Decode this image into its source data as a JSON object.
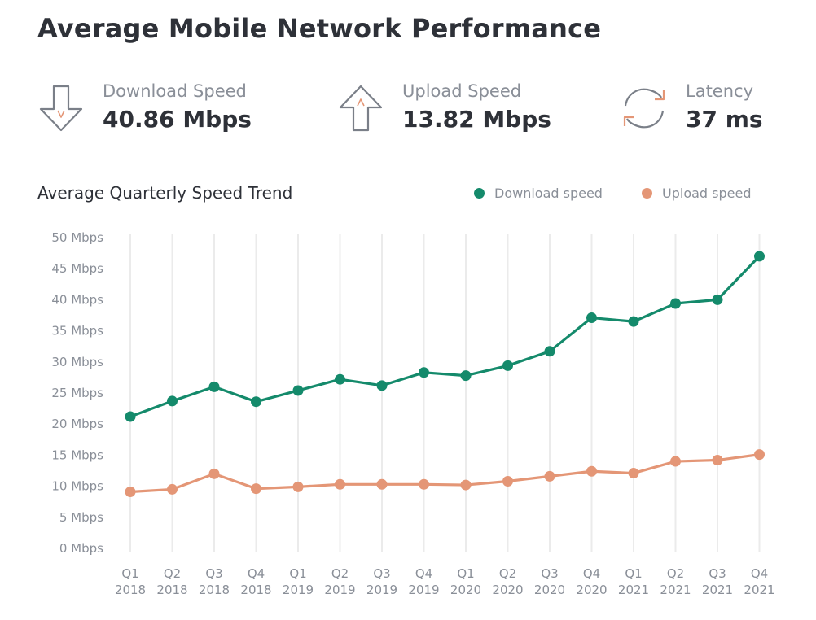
{
  "title": "Average Mobile Network Performance",
  "stats": {
    "download": {
      "label": "Download Speed",
      "value": "40.86 Mbps",
      "icon": "arrow-down-icon"
    },
    "upload": {
      "label": "Upload Speed",
      "value": "13.82 Mbps",
      "icon": "arrow-up-icon"
    },
    "latency": {
      "label": "Latency",
      "value": "37 ms",
      "icon": "refresh-icon"
    }
  },
  "colors": {
    "download": "#148a6b",
    "upload": "#e49676",
    "grid": "#ebebeb",
    "axis_text": "#8a8f98",
    "icon_stroke": "#7a7f88",
    "icon_accent": "#e49676"
  },
  "chart_data": {
    "type": "line",
    "title": "Average Quarterly Speed Trend",
    "categories": [
      [
        "Q1",
        "2018"
      ],
      [
        "Q2",
        "2018"
      ],
      [
        "Q3",
        "2018"
      ],
      [
        "Q4",
        "2018"
      ],
      [
        "Q1",
        "2019"
      ],
      [
        "Q2",
        "2019"
      ],
      [
        "Q3",
        "2019"
      ],
      [
        "Q4",
        "2019"
      ],
      [
        "Q1",
        "2020"
      ],
      [
        "Q2",
        "2020"
      ],
      [
        "Q3",
        "2020"
      ],
      [
        "Q4",
        "2020"
      ],
      [
        "Q1",
        "2021"
      ],
      [
        "Q2",
        "2021"
      ],
      [
        "Q3",
        "2021"
      ],
      [
        "Q4",
        "2021"
      ]
    ],
    "series": [
      {
        "name": "Download speed",
        "color": "#148a6b",
        "values": [
          21.2,
          23.7,
          26.0,
          23.6,
          25.4,
          27.2,
          26.2,
          28.3,
          27.8,
          29.4,
          31.7,
          37.1,
          36.5,
          39.4,
          40.0,
          47.0
        ]
      },
      {
        "name": "Upload speed",
        "color": "#e49676",
        "values": [
          9.1,
          9.5,
          12.0,
          9.6,
          9.9,
          10.3,
          10.3,
          10.3,
          10.2,
          10.8,
          11.6,
          12.4,
          12.1,
          14.0,
          14.2,
          15.1
        ]
      }
    ],
    "ylim": [
      0,
      50
    ],
    "yticks": [
      "0 Mbps",
      "5 Mbps",
      "10 Mbps",
      "15 Mbps",
      "20 Mbps",
      "25 Mbps",
      "30 Mbps",
      "35 Mbps",
      "40 Mbps",
      "45 Mbps",
      "50 Mbps"
    ],
    "grid": "vertical",
    "legend_position": "top-right"
  }
}
